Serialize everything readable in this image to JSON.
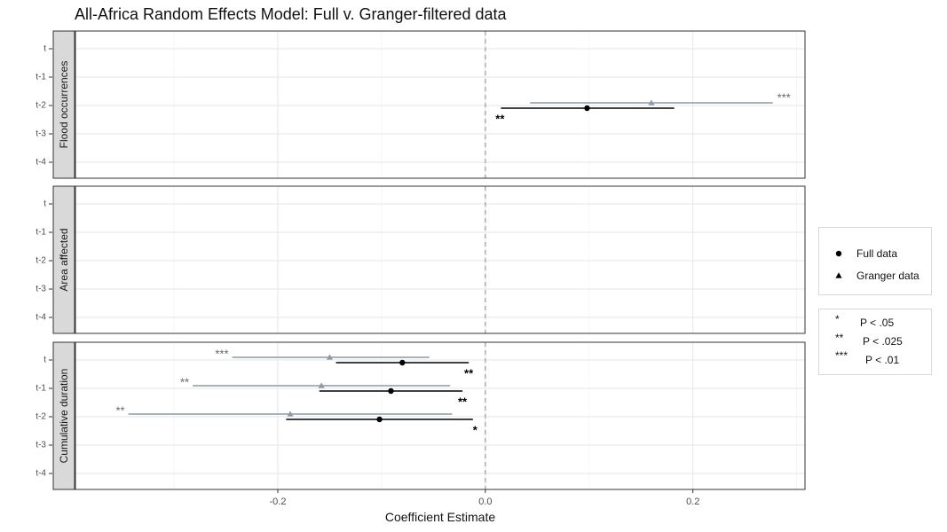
{
  "chart_data": {
    "type": "scatter",
    "subtype": "dot-and-whisker (coefficient plot with confidence intervals), faceted",
    "title": "All-Africa Random Effects Model: Full v. Granger-filtered data",
    "xlabel": "Coefficient Estimate",
    "ylabel": "",
    "xlim": [
      -0.395,
      0.308
    ],
    "x_ticks": [
      -0.2,
      0.0,
      0.2
    ],
    "x_tick_labels": [
      "-0.2",
      "0.0",
      "0.2"
    ],
    "y_categories": [
      "t",
      "t-1",
      "t-2",
      "t-3",
      "t-4"
    ],
    "reference_line": {
      "x": 0,
      "style": "dashed"
    },
    "grid": true,
    "legend_position": "right",
    "series": [
      {
        "name": "Full data",
        "marker": "circle",
        "color": "#000000"
      },
      {
        "name": "Granger data",
        "marker": "triangle",
        "color": "#8c9aa8"
      }
    ],
    "significance_legend": [
      {
        "symbol": "*",
        "label": "P < .05"
      },
      {
        "symbol": "**",
        "label": "P < .025"
      },
      {
        "symbol": "***",
        "label": "P < .01"
      }
    ],
    "facets": [
      {
        "label": "Flood occurrences",
        "points": [
          {
            "series": "Granger data",
            "lag": "t-2",
            "estimate": 0.16,
            "lower": 0.043,
            "upper": 0.277,
            "stars": "***"
          },
          {
            "series": "Full data",
            "lag": "t-2",
            "estimate": 0.098,
            "lower": 0.015,
            "upper": 0.182,
            "stars": "**"
          }
        ]
      },
      {
        "label": "Area affected",
        "points": []
      },
      {
        "label": "Cumulative duration",
        "points": [
          {
            "series": "Granger data",
            "lag": "t",
            "estimate": -0.15,
            "lower": -0.244,
            "upper": -0.054,
            "stars": "***"
          },
          {
            "series": "Full data",
            "lag": "t",
            "estimate": -0.08,
            "lower": -0.144,
            "upper": -0.016,
            "stars": "**"
          },
          {
            "series": "Granger data",
            "lag": "t-1",
            "estimate": -0.158,
            "lower": -0.282,
            "upper": -0.034,
            "stars": "**"
          },
          {
            "series": "Full data",
            "lag": "t-1",
            "estimate": -0.091,
            "lower": -0.16,
            "upper": -0.022,
            "stars": "**"
          },
          {
            "series": "Granger data",
            "lag": "t-2",
            "estimate": -0.188,
            "lower": -0.344,
            "upper": -0.032,
            "stars": "**"
          },
          {
            "series": "Full data",
            "lag": "t-2",
            "estimate": -0.102,
            "lower": -0.192,
            "upper": -0.012,
            "stars": "*"
          }
        ]
      }
    ]
  }
}
